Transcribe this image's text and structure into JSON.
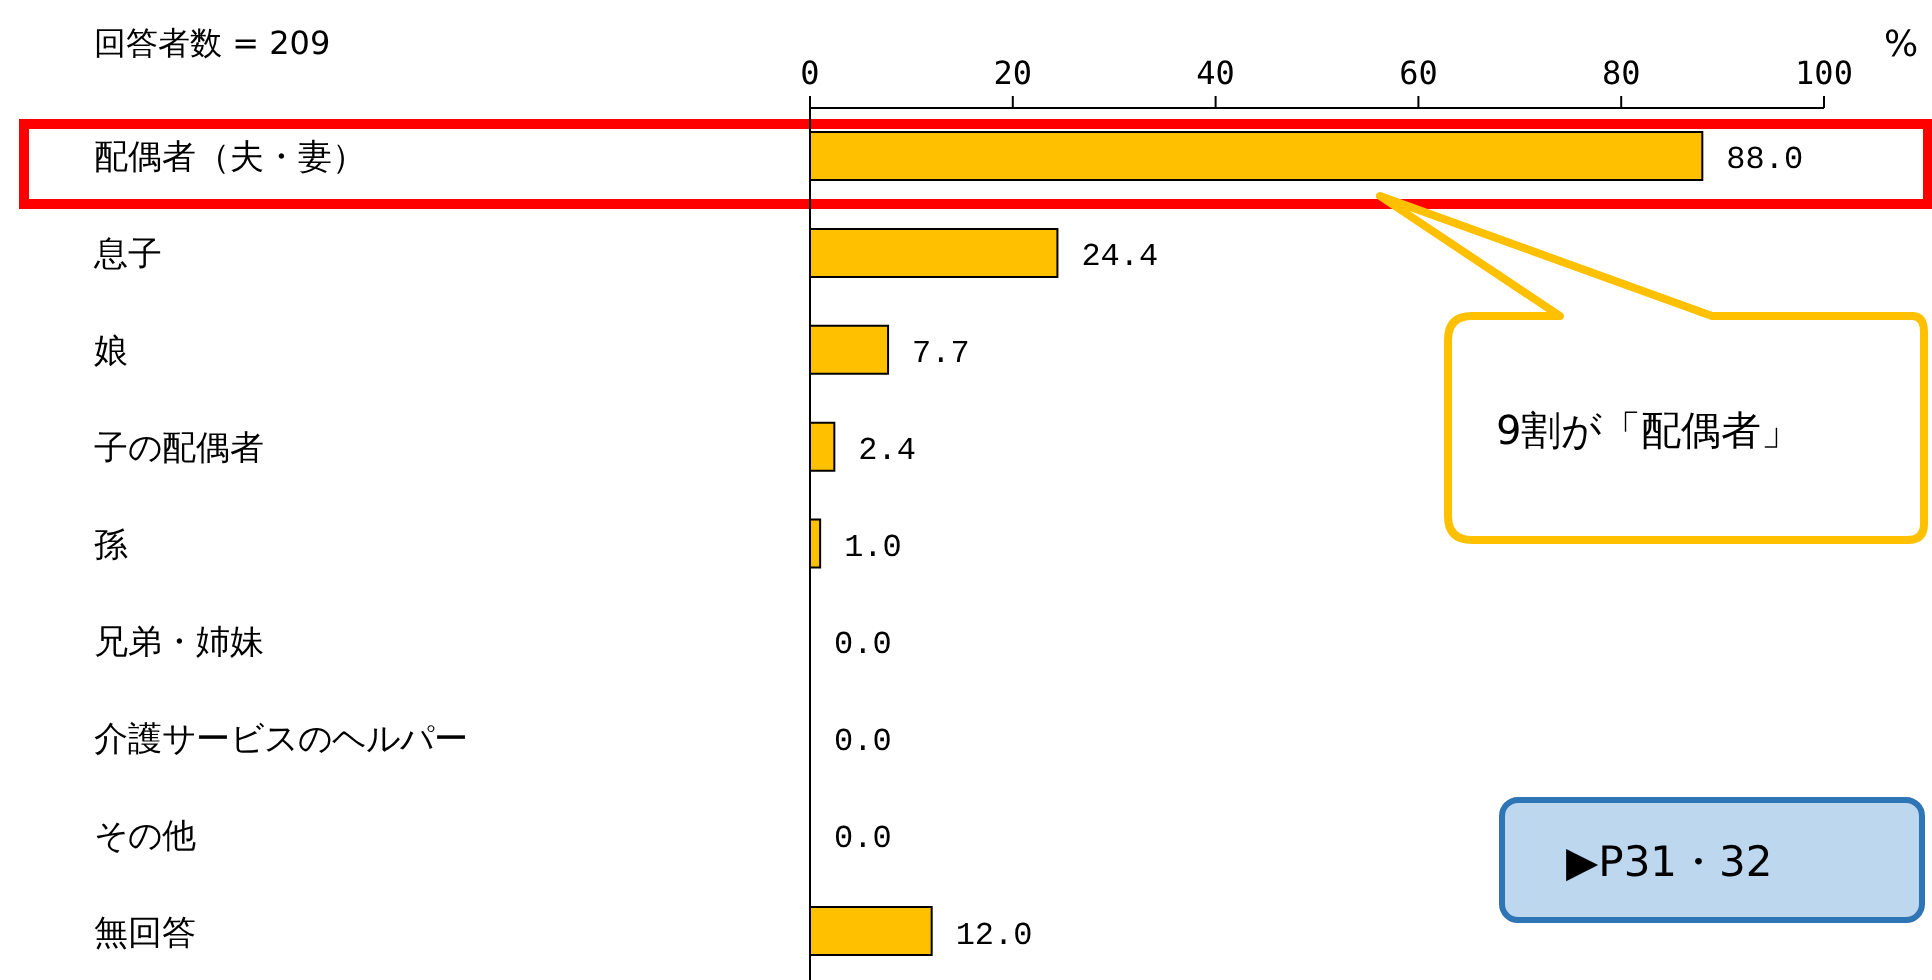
{
  "chart_data": {
    "type": "bar",
    "orientation": "horizontal",
    "x2label": "%",
    "categories": [
      "配偶者（夫・妻）",
      "息子",
      "娘",
      "子の配偶者",
      "孫",
      "兄弟・姉妹",
      "介護サービスのヘルパー",
      "その他",
      "無回答"
    ],
    "values": [
      88.0,
      24.4,
      7.7,
      2.4,
      1.0,
      0.0,
      0.0,
      0.0,
      12.0
    ],
    "value_labels": [
      "88.0",
      "24.4",
      "7.7",
      "2.4",
      "1.0",
      "0.0",
      "0.0",
      "0.0",
      "12.0"
    ],
    "color": "#ffc000",
    "x2lim": [
      0,
      100
    ],
    "x2ticks": [
      0,
      20,
      40,
      60,
      80,
      100
    ],
    "grid": false,
    "legend": false,
    "annotations": [
      "回答者数 = 209",
      "9割が「配偶者」",
      "▶P31・32"
    ]
  }
}
